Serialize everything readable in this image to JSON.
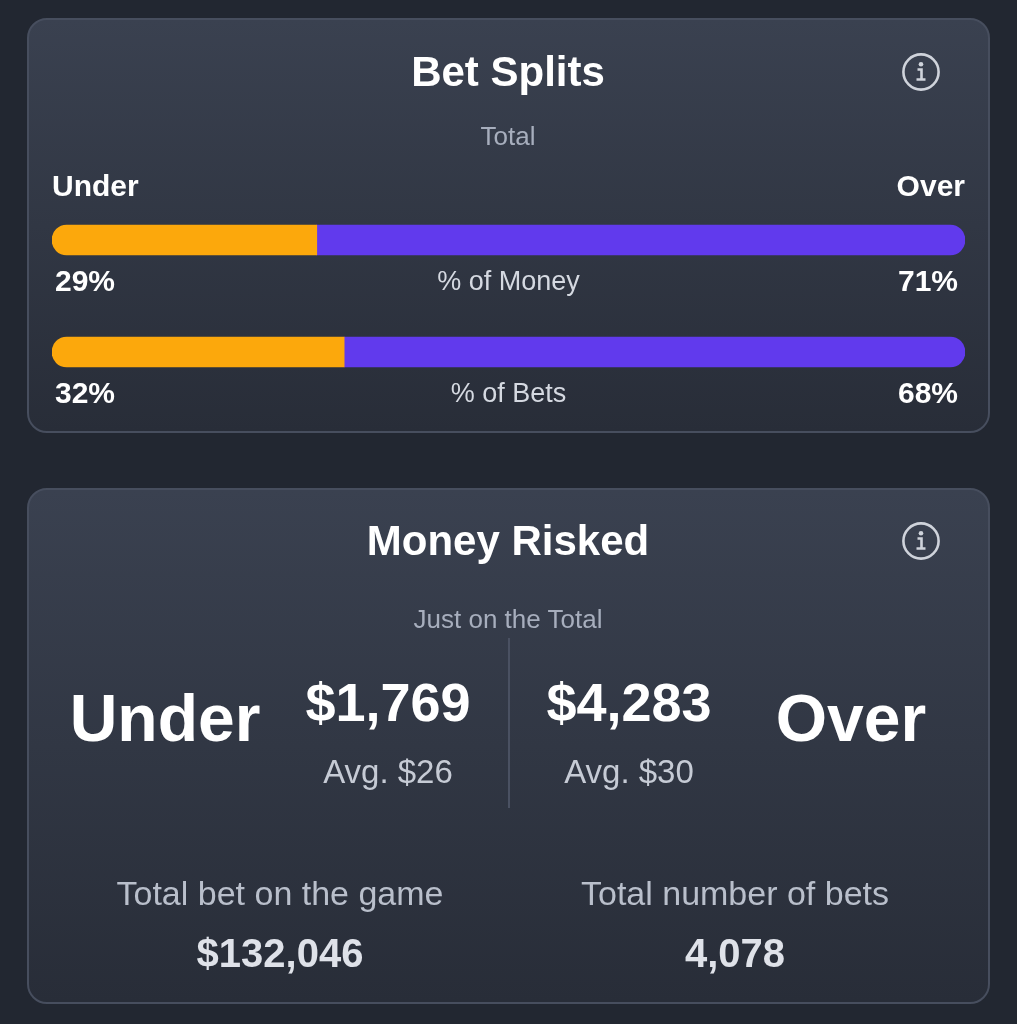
{
  "chart_data": [
    {
      "type": "bar",
      "orientation": "horizontal",
      "stacked": true,
      "title": "Bet Splits",
      "subtitle": "Total",
      "categories": [
        "% of Money",
        "% of Bets"
      ],
      "series": [
        {
          "name": "Under",
          "color": "#fca80c",
          "values": [
            29,
            32
          ],
          "value_labels": [
            "29%",
            "32%"
          ]
        },
        {
          "name": "Over",
          "color": "#613aed",
          "values": [
            71,
            68
          ],
          "value_labels": [
            "71%",
            "68%"
          ]
        }
      ],
      "xlim": [
        0,
        100
      ],
      "tick_labels": "y"
    },
    {
      "type": "other",
      "title": "Money Risked",
      "subtitle": "Just on the Total",
      "annotations": [
        "Under",
        "$1,769",
        "Avg. $26",
        "$4,283",
        "Avg. $30",
        "Over",
        "Total bet on the game",
        "$132,046",
        "Total number of bets",
        "4,078"
      ]
    }
  ]
}
